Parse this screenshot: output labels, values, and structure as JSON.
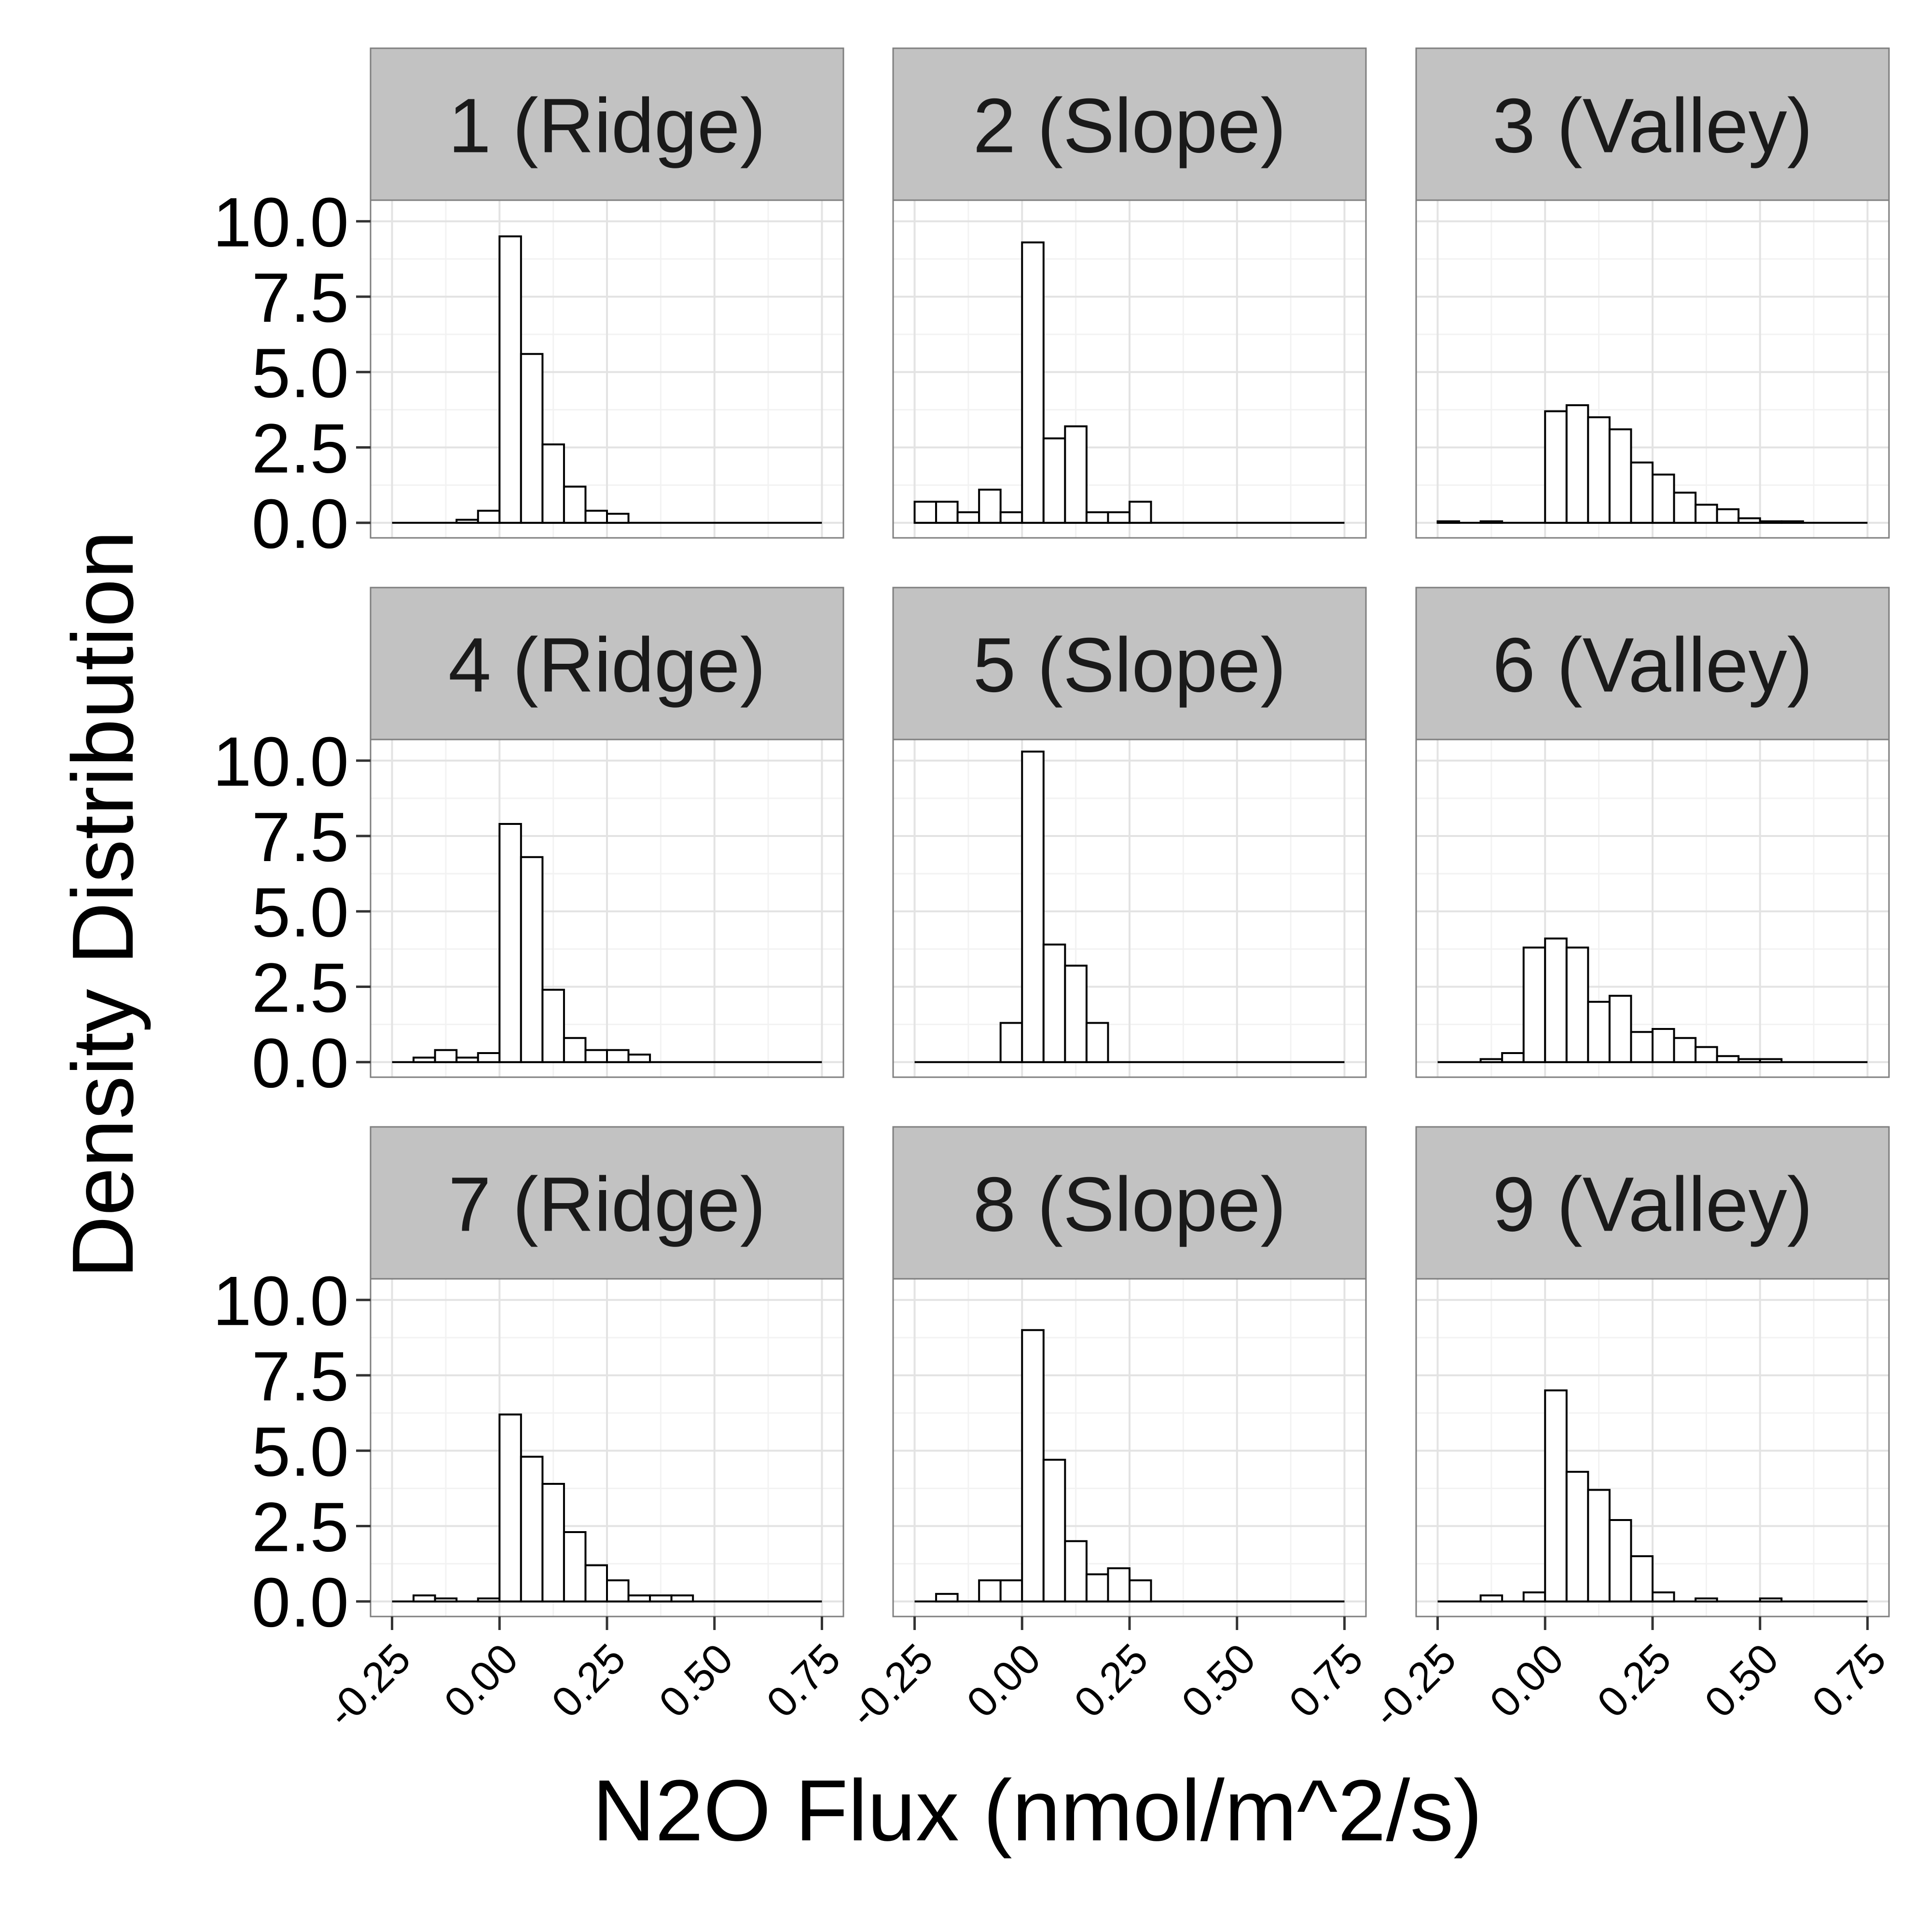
{
  "chart_data": {
    "type": "bar",
    "layout": "facet-grid-3x3",
    "xlabel": "N2O Flux (nmol/m^2/s)",
    "ylabel": "Density Distribution",
    "xlim": [
      -0.3,
      0.8
    ],
    "ylim": [
      -0.5,
      10.7
    ],
    "x_ticks": [
      -0.25,
      0.0,
      0.25,
      0.5,
      0.75
    ],
    "x_tick_labels": [
      "-0.25",
      "0.00",
      "0.25",
      "0.50",
      "0.75"
    ],
    "y_ticks": [
      0,
      2.5,
      5,
      7.5,
      10
    ],
    "y_tick_labels": [
      "0.0",
      "2.5",
      "5.0",
      "7.5",
      "10.0"
    ],
    "grid": true,
    "bar_fill": "#ffffff",
    "bar_stroke": "#000000",
    "strip_fill": "#c2c2c2",
    "bin_width": 0.05,
    "bin_start": -0.25,
    "bin_end": 0.75,
    "panels": [
      {
        "label": "1 (Ridge)",
        "densities": [
          0,
          0,
          0,
          0.1,
          0.4,
          9.5,
          5.6,
          2.6,
          1.2,
          0.4,
          0.3,
          0,
          0,
          0,
          0,
          0,
          0,
          0,
          0,
          0
        ]
      },
      {
        "label": "2 (Slope)",
        "densities": [
          0.7,
          0.7,
          0.35,
          1.1,
          0.35,
          9.3,
          2.8,
          3.2,
          0.35,
          0.35,
          0.7,
          0,
          0,
          0,
          0,
          0,
          0,
          0,
          0,
          0
        ]
      },
      {
        "label": "3 (Valley)",
        "densities": [
          0.05,
          0,
          0.05,
          0,
          0,
          3.7,
          3.9,
          3.5,
          3.1,
          2.0,
          1.6,
          1.0,
          0.6,
          0.45,
          0.15,
          0.05,
          0.05,
          0,
          0,
          0
        ]
      },
      {
        "label": "4 (Ridge)",
        "densities": [
          0,
          0.15,
          0.4,
          0.15,
          0.3,
          7.9,
          6.8,
          2.4,
          0.8,
          0.4,
          0.4,
          0.25,
          0,
          0,
          0,
          0,
          0,
          0,
          0,
          0
        ]
      },
      {
        "label": "5 (Slope)",
        "densities": [
          0,
          0,
          0,
          0,
          1.3,
          10.3,
          3.9,
          3.2,
          1.3,
          0,
          0,
          0,
          0,
          0,
          0,
          0,
          0,
          0,
          0,
          0
        ]
      },
      {
        "label": "6 (Valley)",
        "densities": [
          0,
          0,
          0.1,
          0.3,
          3.8,
          4.1,
          3.8,
          2.0,
          2.2,
          1.0,
          1.1,
          0.8,
          0.5,
          0.2,
          0.1,
          0.1,
          0,
          0,
          0,
          0
        ]
      },
      {
        "label": "7 (Ridge)",
        "densities": [
          0,
          0.2,
          0.1,
          0,
          0.1,
          6.2,
          4.8,
          3.9,
          2.3,
          1.2,
          0.7,
          0.2,
          0.2,
          0.2,
          0,
          0,
          0,
          0,
          0,
          0
        ]
      },
      {
        "label": "8 (Slope)",
        "densities": [
          0,
          0.25,
          0,
          0.7,
          0.7,
          9.0,
          4.7,
          2.0,
          0.9,
          1.1,
          0.7,
          0,
          0,
          0,
          0,
          0,
          0,
          0,
          0,
          0
        ]
      },
      {
        "label": "9 (Valley)",
        "densities": [
          0,
          0,
          0.2,
          0,
          0.3,
          7.0,
          4.3,
          3.7,
          2.7,
          1.5,
          0.3,
          0,
          0.1,
          0,
          0,
          0.1,
          0,
          0,
          0,
          0
        ]
      }
    ]
  }
}
